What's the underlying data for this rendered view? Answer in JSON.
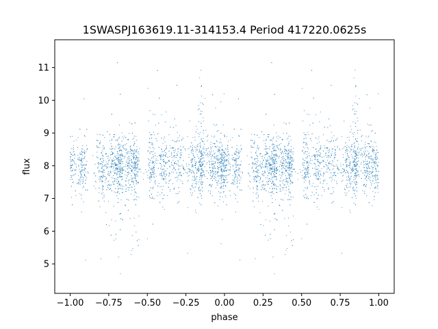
{
  "chart_data": {
    "type": "scatter",
    "title": "1SWASPJ163619.11-314153.4 Period 417220.0625s",
    "xlabel": "phase",
    "ylabel": "flux",
    "xlim": [
      -1.1,
      1.1
    ],
    "ylim": [
      4.1,
      11.85
    ],
    "xticks": [
      -1.0,
      -0.75,
      -0.5,
      -0.25,
      0.0,
      0.25,
      0.5,
      0.75,
      1.0
    ],
    "xtick_labels": [
      "−1.00",
      "−0.75",
      "−0.50",
      "−0.25",
      "0.00",
      "0.25",
      "0.50",
      "0.75",
      "1.00"
    ],
    "yticks": [
      5,
      6,
      7,
      8,
      9,
      10,
      11
    ],
    "ytick_labels": [
      "5",
      "6",
      "7",
      "8",
      "9",
      "10",
      "11"
    ],
    "grid": false,
    "marker_color": "#1f77b4",
    "point_count": "dense light-curve sample folded twice over phase -1 to 1",
    "series": [
      {
        "phase_flux_profile": [
          {
            "x": -1.0,
            "y": 8.0
          },
          {
            "x": -0.85,
            "y": 8.1
          },
          {
            "x": -0.78,
            "y": 7.9
          },
          {
            "x": -0.72,
            "y": 7.2
          },
          {
            "x": -0.65,
            "y": 7.8
          },
          {
            "x": -0.58,
            "y": 6.3
          },
          {
            "x": -0.5,
            "y": 8.1
          },
          {
            "x": -0.4,
            "y": 7.8
          },
          {
            "x": -0.3,
            "y": 8.2
          },
          {
            "x": -0.2,
            "y": 8.0
          },
          {
            "x": -0.15,
            "y": 9.8
          },
          {
            "x": -0.08,
            "y": 8.2
          },
          {
            "x": 0.0,
            "y": 8.0
          },
          {
            "x": 0.15,
            "y": 8.1
          },
          {
            "x": 0.22,
            "y": 7.9
          },
          {
            "x": 0.28,
            "y": 7.2
          },
          {
            "x": 0.35,
            "y": 7.8
          },
          {
            "x": 0.42,
            "y": 6.3
          },
          {
            "x": 0.5,
            "y": 8.1
          },
          {
            "x": 0.6,
            "y": 7.8
          },
          {
            "x": 0.7,
            "y": 8.2
          },
          {
            "x": 0.8,
            "y": 8.0
          },
          {
            "x": 0.85,
            "y": 9.8
          },
          {
            "x": 0.92,
            "y": 8.2
          },
          {
            "x": 1.0,
            "y": 8.0
          }
        ]
      }
    ]
  }
}
